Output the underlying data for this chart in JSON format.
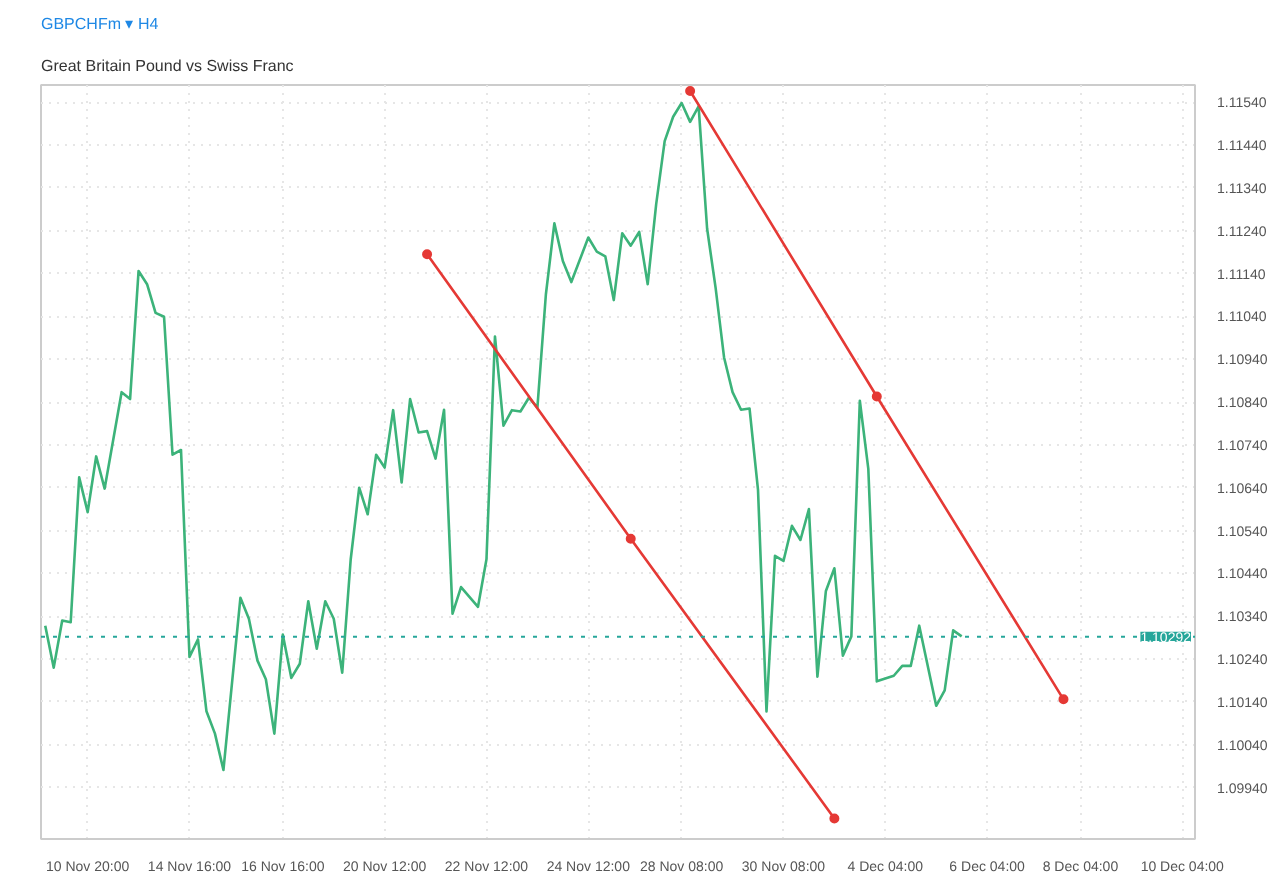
{
  "chart_data": {
    "type": "line",
    "title": "GBPCHFm ▾ H4",
    "subtitle": "Great Britain Pound vs Swiss Franc",
    "categories": [
      null,
      null,
      null,
      null,
      null,
      "10 Nov 20:00",
      null,
      null,
      null,
      null,
      null,
      null,
      null,
      null,
      null,
      null,
      null,
      "14 Nov 16:00",
      null,
      null,
      null,
      null,
      null,
      null,
      null,
      null,
      null,
      null,
      "16 Nov 16:00",
      null,
      null,
      null,
      null,
      null,
      null,
      null,
      null,
      null,
      null,
      null,
      "20 Nov 12:00",
      null,
      null,
      null,
      null,
      null,
      null,
      null,
      null,
      null,
      null,
      null,
      "22 Nov 12:00",
      null,
      null,
      null,
      null,
      null,
      null,
      null,
      null,
      null,
      null,
      null,
      "24 Nov 12:00",
      null,
      null,
      null,
      null,
      null,
      null,
      null,
      null,
      null,
      null,
      "28 Nov 08:00",
      null,
      null,
      null,
      null,
      null,
      null,
      null,
      null,
      null,
      null,
      null,
      "30 Nov 08:00",
      null,
      null,
      null,
      null,
      null,
      null,
      null,
      null,
      null,
      null,
      null,
      "4 Dec 04:00",
      null,
      null,
      null,
      null,
      null,
      null,
      null,
      null,
      null,
      null,
      null,
      "6 Dec 04:00",
      null,
      null,
      null,
      null,
      null,
      null,
      null,
      null,
      null,
      null,
      "8 Dec 04:00",
      null,
      null,
      null,
      null,
      null,
      null,
      null,
      null,
      null,
      null,
      null,
      "10 Dec 04:00",
      null
    ],
    "ylim": [
      1.0982,
      1.1158
    ],
    "yticks": [
      {
        "value": 1.0994,
        "label": "1.09940"
      },
      {
        "value": 1.1004,
        "label": "1.10040"
      },
      {
        "value": 1.1014,
        "label": "1.10140"
      },
      {
        "value": 1.1024,
        "label": "1.10240"
      },
      {
        "value": 1.1034,
        "label": "1.10340"
      },
      {
        "value": 1.1044,
        "label": "1.10440"
      },
      {
        "value": 1.1054,
        "label": "1.10540"
      },
      {
        "value": 1.1064,
        "label": "1.10640"
      },
      {
        "value": 1.1074,
        "label": "1.10740"
      },
      {
        "value": 1.1084,
        "label": "1.10840"
      },
      {
        "value": 1.1094,
        "label": "1.10940"
      },
      {
        "value": 1.1104,
        "label": "1.11040"
      },
      {
        "value": 1.1114,
        "label": "1.11140"
      },
      {
        "value": 1.1124,
        "label": "1.11240"
      },
      {
        "value": 1.1134,
        "label": "1.11340"
      },
      {
        "value": 1.1144,
        "label": "1.11440"
      },
      {
        "value": 1.1154,
        "label": "1.11540"
      }
    ],
    "grid": true,
    "line_style": "solid",
    "ref_lines": [
      {
        "axis": "y",
        "value": 1.10292,
        "label": "1.10292",
        "color": "#26a69a",
        "line_style": "dotted"
      }
    ],
    "series": [
      {
        "color": "#3cb37a",
        "marker": "none",
        "values": [
          1.10318,
          1.1022,
          1.1033,
          1.10326,
          1.10664,
          1.10583,
          1.10713,
          1.10638,
          null,
          1.10863,
          1.10847,
          1.11146,
          1.11115,
          1.11048,
          1.11039,
          1.10717,
          1.10728,
          1.10245,
          1.10286,
          1.10118,
          1.10066,
          1.09981,
          null,
          1.10383,
          1.10334,
          1.10237,
          1.10193,
          1.10066,
          1.10297,
          1.10196,
          1.10229,
          1.10375,
          1.10264,
          1.10375,
          1.10334,
          1.10208,
          1.10473,
          1.1064,
          1.10578,
          1.10717,
          1.10687,
          1.10821,
          1.10652,
          1.10847,
          1.10769,
          1.10772,
          1.10708,
          1.10822,
          1.10346,
          1.10408,
          null,
          1.10362,
          1.10473,
          1.10993,
          1.10785,
          1.10821,
          1.10818,
          1.1085,
          1.10827,
          1.11091,
          1.11257,
          1.11169,
          1.1112,
          null,
          1.11224,
          1.11191,
          1.1118,
          1.11078,
          1.11234,
          1.11205,
          1.11237,
          1.11115,
          1.11302,
          1.11449,
          1.11506,
          1.11538,
          1.11494,
          1.1153,
          1.11245,
          1.11107,
          1.10944,
          1.10863,
          1.10822,
          1.10825,
          1.10635,
          1.10118,
          1.10481,
          1.10469,
          1.10551,
          1.10518,
          1.1059,
          1.10199,
          1.10399,
          1.10452,
          1.10248,
          1.10293,
          1.10843,
          1.10684,
          1.10188,
          null,
          1.10201,
          1.10224,
          1.10224,
          1.10318,
          null,
          1.10131,
          1.10167,
          1.10307,
          1.10293,
          null,
          null,
          null,
          null,
          null,
          null,
          null,
          null,
          null,
          null,
          null,
          null,
          null,
          null,
          null,
          null,
          null,
          null,
          null,
          null,
          null,
          null,
          null,
          null,
          null,
          null,
          null
        ]
      },
      {
        "color": "#e53935",
        "marker": "circle",
        "values": [
          null,
          null,
          null,
          null,
          null,
          null,
          null,
          null,
          null,
          null,
          null,
          null,
          null,
          null,
          null,
          null,
          null,
          null,
          null,
          null,
          null,
          null,
          null,
          null,
          null,
          null,
          null,
          null,
          null,
          null,
          null,
          null,
          null,
          null,
          null,
          null,
          null,
          null,
          null,
          null,
          null,
          null,
          null,
          null,
          null,
          null,
          null,
          null,
          null,
          null,
          null,
          null,
          null,
          null,
          null,
          null,
          null,
          null,
          null,
          null,
          null,
          null,
          null,
          null,
          null,
          null,
          null,
          null,
          null,
          null,
          null,
          null,
          null,
          null,
          null,
          null,
          1.11566,
          null,
          null,
          null,
          null,
          null,
          null,
          null,
          null,
          null,
          null,
          null,
          null,
          null,
          null,
          null,
          null,
          null,
          null,
          null,
          null,
          null,
          1.10853,
          null,
          null,
          null,
          null,
          null,
          null,
          null,
          null,
          null,
          null,
          null,
          null,
          null,
          null,
          null,
          null,
          null,
          null,
          null,
          null,
          null,
          1.10146,
          null,
          null,
          null,
          null,
          null,
          null,
          null,
          null,
          null,
          null,
          null,
          null,
          null,
          null,
          null
        ]
      },
      {
        "color": "#e53935",
        "marker": "circle",
        "values": [
          null,
          null,
          null,
          null,
          null,
          null,
          null,
          null,
          null,
          null,
          null,
          null,
          null,
          null,
          null,
          null,
          null,
          null,
          null,
          null,
          null,
          null,
          null,
          null,
          null,
          null,
          null,
          null,
          null,
          null,
          null,
          null,
          null,
          null,
          null,
          null,
          null,
          null,
          null,
          null,
          null,
          null,
          null,
          null,
          null,
          1.11185,
          null,
          null,
          null,
          null,
          null,
          null,
          null,
          null,
          null,
          null,
          null,
          null,
          null,
          null,
          null,
          null,
          null,
          null,
          null,
          null,
          null,
          null,
          null,
          1.10521,
          null,
          null,
          null,
          null,
          null,
          null,
          null,
          null,
          null,
          null,
          null,
          null,
          null,
          null,
          null,
          null,
          null,
          null,
          null,
          null,
          null,
          null,
          null,
          1.09868,
          null,
          null,
          null,
          null,
          null,
          null,
          null,
          null,
          null,
          null,
          null,
          null,
          null,
          null,
          null,
          null,
          null,
          null,
          null,
          null,
          null,
          null,
          null,
          null,
          null,
          null,
          null,
          null,
          null,
          null,
          null,
          null,
          null,
          null,
          null,
          null,
          null,
          null,
          null,
          null,
          null,
          null
        ]
      }
    ]
  }
}
